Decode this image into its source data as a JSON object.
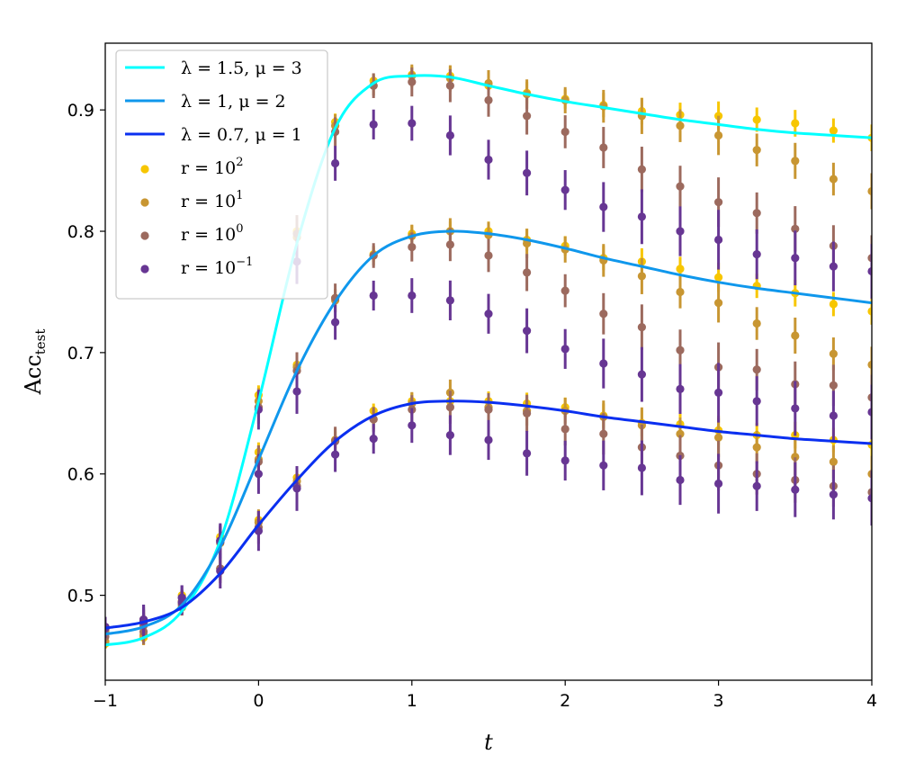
{
  "chart_data": {
    "type": "line",
    "xlabel": "t",
    "ylabel_main": "Acc",
    "ylabel_sub": "test",
    "xlim": [
      -1,
      4
    ],
    "ylim": [
      0.43,
      0.955
    ],
    "xticks": [
      -1,
      0,
      1,
      2,
      3,
      4
    ],
    "xtick_labels": [
      "−1",
      "0",
      "1",
      "2",
      "3",
      "4"
    ],
    "yticks": [
      0.5,
      0.6,
      0.7,
      0.8,
      0.9
    ],
    "ytick_labels": [
      "0.5",
      "0.6",
      "0.7",
      "0.8",
      "0.9"
    ],
    "grid": false,
    "legend": {
      "location": "upper-left",
      "entries": [
        {
          "kind": "line",
          "color": "#00ffff",
          "text": "λ = 1.5, μ = 3"
        },
        {
          "kind": "line",
          "color": "#0f97ec",
          "text": "λ = 1, μ = 2"
        },
        {
          "kind": "line",
          "color": "#0a2ff0",
          "text": "λ = 0.7, μ = 1"
        },
        {
          "kind": "marker",
          "color": "#f7c600",
          "text_base": "r = 10",
          "text_exp": "2"
        },
        {
          "kind": "marker",
          "color": "#c89632",
          "text_base": "r = 10",
          "text_exp": "1"
        },
        {
          "kind": "marker",
          "color": "#9c6a5e",
          "text_base": "r = 10",
          "text_exp": "0"
        },
        {
          "kind": "marker",
          "color": "#673693",
          "text_base": "r = 10",
          "text_exp": "−1"
        }
      ]
    },
    "lines": [
      {
        "name": "λ = 1.5, μ = 3",
        "color": "#00ffff",
        "x": [
          -1,
          -0.75,
          -0.5,
          -0.25,
          0,
          0.25,
          0.5,
          0.75,
          1,
          1.25,
          1.5,
          1.75,
          2,
          2.25,
          2.5,
          2.75,
          3,
          3.25,
          3.5,
          3.75,
          4
        ],
        "y": [
          0.459,
          0.465,
          0.487,
          0.545,
          0.66,
          0.79,
          0.885,
          0.922,
          0.928,
          0.927,
          0.92,
          0.913,
          0.907,
          0.902,
          0.897,
          0.892,
          0.888,
          0.884,
          0.881,
          0.879,
          0.877
        ]
      },
      {
        "name": "λ = 1, μ = 2",
        "color": "#0f97ec",
        "x": [
          -1,
          -0.75,
          -0.5,
          -0.25,
          0,
          0.25,
          0.5,
          0.75,
          1,
          1.25,
          1.5,
          1.75,
          2,
          2.25,
          2.5,
          2.75,
          3,
          3.25,
          3.5,
          3.75,
          4
        ],
        "y": [
          0.468,
          0.474,
          0.492,
          0.54,
          0.612,
          0.685,
          0.742,
          0.78,
          0.796,
          0.8,
          0.798,
          0.793,
          0.786,
          0.778,
          0.771,
          0.764,
          0.758,
          0.753,
          0.749,
          0.745,
          0.741
        ]
      },
      {
        "name": "λ = 0.7, μ = 1",
        "color": "#0a2ff0",
        "x": [
          -1,
          -0.75,
          -0.5,
          -0.25,
          0,
          0.25,
          0.5,
          0.75,
          1,
          1.25,
          1.5,
          1.75,
          2,
          2.25,
          2.5,
          2.75,
          3,
          3.25,
          3.5,
          3.75,
          4
        ],
        "y": [
          0.473,
          0.478,
          0.49,
          0.518,
          0.558,
          0.595,
          0.627,
          0.648,
          0.658,
          0.66,
          0.659,
          0.656,
          0.652,
          0.647,
          0.643,
          0.639,
          0.635,
          0.632,
          0.629,
          0.627,
          0.625
        ]
      }
    ],
    "series": [
      {
        "name": "r = 10^2",
        "color": "#f7c600",
        "x": [
          -1,
          -0.75,
          -0.5,
          -0.25,
          0,
          0.25,
          0.5,
          0.75,
          1,
          1.25,
          1.5,
          1.75,
          2,
          2.25,
          2.5,
          2.75,
          3,
          3.25,
          3.5,
          3.75,
          4
        ],
        "y1": [
          0.46,
          0.465,
          0.49,
          0.548,
          0.665,
          0.8,
          0.89,
          0.924,
          0.929,
          0.928,
          0.92,
          0.914,
          0.909,
          0.904,
          0.899,
          0.896,
          0.895,
          0.892,
          0.889,
          0.883,
          0.877
        ],
        "y2": [
          0.47,
          0.478,
          0.5,
          0.548,
          0.618,
          0.69,
          0.745,
          0.781,
          0.798,
          0.8,
          0.8,
          0.793,
          0.788,
          0.778,
          0.775,
          0.769,
          0.762,
          0.755,
          0.749,
          0.74,
          0.734
        ],
        "y3": [
          0.472,
          0.48,
          0.495,
          0.522,
          0.562,
          0.597,
          0.628,
          0.652,
          0.66,
          0.66,
          0.66,
          0.658,
          0.655,
          0.648,
          0.642,
          0.641,
          0.636,
          0.632,
          0.632,
          0.628,
          0.624
        ]
      },
      {
        "name": "r = 10^1",
        "color": "#c89632",
        "x": [
          -1,
          -0.75,
          -0.5,
          -0.25,
          0,
          0.25,
          0.5,
          0.75,
          1,
          1.25,
          1.5,
          1.75,
          2,
          2.25,
          2.5,
          2.75,
          3,
          3.25,
          3.5,
          3.75,
          4
        ],
        "y1": [
          0.462,
          0.467,
          0.49,
          0.543,
          0.66,
          0.795,
          0.887,
          0.92,
          0.928,
          0.926,
          0.922,
          0.913,
          0.908,
          0.903,
          0.895,
          0.887,
          0.879,
          0.867,
          0.858,
          0.843,
          0.833
        ],
        "y2": [
          0.47,
          0.477,
          0.495,
          0.545,
          0.612,
          0.688,
          0.743,
          0.78,
          0.796,
          0.8,
          0.797,
          0.79,
          0.785,
          0.776,
          0.763,
          0.75,
          0.741,
          0.724,
          0.714,
          0.699,
          0.69
        ],
        "y3": [
          0.472,
          0.48,
          0.493,
          0.522,
          0.56,
          0.594,
          0.628,
          0.645,
          0.658,
          0.667,
          0.655,
          0.652,
          0.652,
          0.647,
          0.64,
          0.633,
          0.63,
          0.622,
          0.614,
          0.61,
          0.6
        ]
      },
      {
        "name": "r = 10^0",
        "color": "#9c6a5e",
        "x": [
          -1,
          -0.75,
          -0.5,
          -0.25,
          0,
          0.25,
          0.5,
          0.75,
          1,
          1.25,
          1.5,
          1.75,
          2,
          2.25,
          2.5,
          2.75,
          3,
          3.25,
          3.5,
          3.75,
          4
        ],
        "y1": [
          0.466,
          0.47,
          0.492,
          0.545,
          0.655,
          0.798,
          0.882,
          0.92,
          0.923,
          0.92,
          0.908,
          0.895,
          0.882,
          0.869,
          0.851,
          0.837,
          0.824,
          0.815,
          0.802,
          0.788,
          0.778
        ],
        "y2": [
          0.472,
          0.475,
          0.495,
          0.545,
          0.61,
          0.685,
          0.745,
          0.78,
          0.787,
          0.789,
          0.78,
          0.766,
          0.751,
          0.732,
          0.721,
          0.702,
          0.688,
          0.686,
          0.674,
          0.673,
          0.663
        ],
        "y3": [
          0.474,
          0.478,
          0.494,
          0.522,
          0.556,
          0.59,
          0.627,
          0.645,
          0.653,
          0.655,
          0.653,
          0.65,
          0.637,
          0.633,
          0.622,
          0.615,
          0.607,
          0.6,
          0.595,
          0.59,
          0.585
        ]
      },
      {
        "name": "r = 10^-1",
        "color": "#673693",
        "x": [
          -1,
          -0.75,
          -0.5,
          -0.25,
          0,
          0.25,
          0.5,
          0.75,
          1,
          1.25,
          1.5,
          1.75,
          2,
          2.25,
          2.5,
          2.75,
          3,
          3.25,
          3.5,
          3.75,
          4
        ],
        "y1": [
          0.473,
          0.48,
          0.498,
          0.545,
          0.653,
          0.775,
          0.856,
          0.888,
          0.889,
          0.879,
          0.859,
          0.848,
          0.834,
          0.82,
          0.812,
          0.8,
          0.793,
          0.781,
          0.778,
          0.771,
          0.767
        ],
        "y2": [
          0.473,
          0.478,
          0.498,
          0.544,
          0.6,
          0.668,
          0.725,
          0.747,
          0.747,
          0.743,
          0.732,
          0.718,
          0.703,
          0.691,
          0.682,
          0.67,
          0.667,
          0.66,
          0.654,
          0.648,
          0.651
        ],
        "y3": [
          0.474,
          0.48,
          0.494,
          0.52,
          0.553,
          0.588,
          0.616,
          0.629,
          0.64,
          0.632,
          0.628,
          0.617,
          0.611,
          0.607,
          0.605,
          0.595,
          0.592,
          0.59,
          0.587,
          0.583,
          0.58
        ]
      }
    ]
  }
}
